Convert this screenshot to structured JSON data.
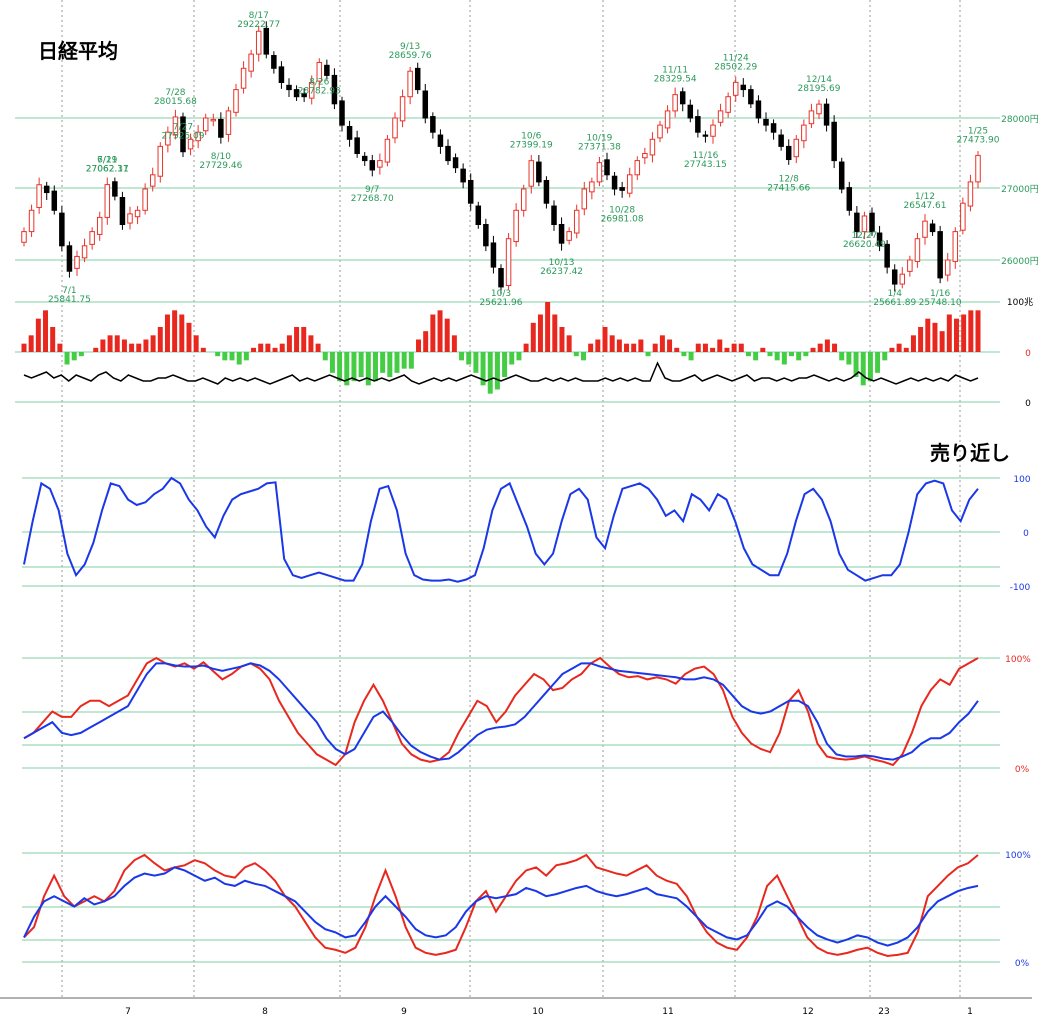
{
  "title": "日経平均",
  "signal_label": "売り近し",
  "colors": {
    "up": "#e8332a",
    "down": "#000000",
    "green": "#2a9a5a",
    "blue": "#1a37e8",
    "red": "#e8281e",
    "hist_pos": "#e8281e",
    "hist_neg": "#44cc44",
    "grid": "#7fcfa5"
  },
  "axes": {
    "price_ticks": [
      "28000円",
      "27000円",
      "26000円"
    ],
    "vol_ticks": [
      "100兆",
      "0",
      "0"
    ],
    "osc_ticks": [
      "100",
      "0",
      "-100"
    ],
    "pct_ticks_1": [
      "100%",
      "0%"
    ],
    "pct_ticks_2": [
      "100%",
      "0%"
    ],
    "month_labels": [
      "7",
      "8",
      "9",
      "10",
      "11",
      "12",
      "23",
      "1"
    ]
  },
  "annotations": [
    {
      "label": "6/29",
      "value": "27062.31"
    },
    {
      "label": "7/11",
      "value": "27062.17"
    },
    {
      "label": "7/1",
      "value": "25841.75"
    },
    {
      "label": "7/28",
      "value": "28015.68"
    },
    {
      "label": "7/27",
      "value": "27525.09"
    },
    {
      "label": "8/10",
      "value": "27729.46"
    },
    {
      "label": "8/17",
      "value": "29222.77"
    },
    {
      "label": "8/26",
      "value": "28782.93"
    },
    {
      "label": "9/7",
      "value": "27268.70"
    },
    {
      "label": "9/13",
      "value": "28659.76"
    },
    {
      "label": "10/3",
      "value": "25621.96"
    },
    {
      "label": "10/6",
      "value": "27399.19"
    },
    {
      "label": "10/13",
      "value": "26237.42"
    },
    {
      "label": "10/19",
      "value": "27371.38"
    },
    {
      "label": "10/28",
      "value": "26981.08"
    },
    {
      "label": "11/11",
      "value": "28329.54"
    },
    {
      "label": "11/16",
      "value": "27743.15"
    },
    {
      "label": "11/24",
      "value": "28502.29"
    },
    {
      "label": "12/8",
      "value": "27415.66"
    },
    {
      "label": "12/14",
      "value": "28195.69"
    },
    {
      "label": "12/27",
      "value": "26620.49"
    },
    {
      "label": "1/4",
      "value": "25661.89"
    },
    {
      "label": "1/12",
      "value": "26547.61"
    },
    {
      "label": "1/16",
      "value": "25748.10"
    },
    {
      "label": "1/25",
      "value": "27473.90"
    }
  ],
  "chart_data": [
    {
      "type": "candlestick",
      "title": "日経平均",
      "ylabel_ticks": [
        "28000円",
        "27000円",
        "26000円"
      ],
      "ylim": [
        25500,
        29400
      ],
      "x_months": [
        "7",
        "8",
        "9",
        "10",
        "11",
        "12",
        "23",
        "1"
      ],
      "closes": [
        26400,
        26700,
        27060,
        26950,
        26700,
        26200,
        25842,
        26050,
        26200,
        26400,
        26600,
        27062,
        26900,
        26500,
        26650,
        26700,
        27000,
        27200,
        27600,
        27800,
        28015,
        27525,
        27700,
        27800,
        28000,
        27980,
        27729,
        28100,
        28400,
        28700,
        28900,
        29222,
        28900,
        28700,
        28500,
        28400,
        28300,
        28300,
        28500,
        28782,
        28600,
        28200,
        27900,
        27700,
        27500,
        27400,
        27268,
        27400,
        27700,
        28000,
        28300,
        28659,
        28400,
        28000,
        27800,
        27600,
        27400,
        27300,
        27100,
        26800,
        26500,
        26200,
        25900,
        25621,
        26300,
        26700,
        27000,
        27399,
        27100,
        26800,
        26500,
        26237,
        26400,
        26700,
        27000,
        27100,
        27371,
        27200,
        27000,
        26981,
        27200,
        27400,
        27500,
        27700,
        27900,
        28100,
        28329,
        28200,
        28000,
        27800,
        27743,
        27900,
        28100,
        28300,
        28502,
        28400,
        28200,
        28000,
        27900,
        27800,
        27600,
        27415,
        27700,
        27900,
        28100,
        28195,
        27900,
        27400,
        27000,
        26700,
        26400,
        26620,
        26400,
        26200,
        25900,
        25661,
        25800,
        26000,
        26300,
        26547,
        26400,
        25748,
        26000,
        26400,
        26800,
        27100,
        27473
      ],
      "events": [
        {
          "label": "6/29",
          "value": 27062.31
        },
        {
          "label": "7/1",
          "value": 25841.75
        },
        {
          "label": "7/11",
          "value": 27062.17
        },
        {
          "label": "7/27",
          "value": 27525.09
        },
        {
          "label": "7/28",
          "value": 28015.68
        },
        {
          "label": "8/10",
          "value": 27729.46
        },
        {
          "label": "8/17",
          "value": 29222.77
        },
        {
          "label": "8/26",
          "value": 28782.93
        },
        {
          "label": "9/7",
          "value": 27268.7
        },
        {
          "label": "9/13",
          "value": 28659.76
        },
        {
          "label": "10/3",
          "value": 25621.96
        },
        {
          "label": "10/6",
          "value": 27399.19
        },
        {
          "label": "10/13",
          "value": 26237.42
        },
        {
          "label": "10/19",
          "value": 27371.38
        },
        {
          "label": "10/28",
          "value": 26981.08
        },
        {
          "label": "11/11",
          "value": 28329.54
        },
        {
          "label": "11/16",
          "value": 27743.15
        },
        {
          "label": "11/24",
          "value": 28502.29
        },
        {
          "label": "12/8",
          "value": 27415.66
        },
        {
          "label": "12/14",
          "value": 28195.69
        },
        {
          "label": "12/27",
          "value": 26620.49
        },
        {
          "label": "1/4",
          "value": 25661.89
        },
        {
          "label": "1/12",
          "value": 26547.61
        },
        {
          "label": "1/16",
          "value": 25748.1
        },
        {
          "label": "1/25",
          "value": 27473.9
        }
      ]
    },
    {
      "type": "bar",
      "ylabel_ticks": [
        "100兆",
        "0",
        "0"
      ],
      "values": [
        2,
        4,
        8,
        10,
        6,
        2,
        -3,
        -2,
        -1,
        0,
        1,
        3,
        4,
        4,
        3,
        2,
        2,
        3,
        4,
        6,
        9,
        10,
        9,
        7,
        4,
        1,
        0,
        -1,
        -2,
        -2,
        -3,
        -2,
        1,
        2,
        2,
        1,
        2,
        4,
        6,
        6,
        4,
        2,
        -2,
        -5,
        -7,
        -8,
        -7,
        -6,
        -8,
        -7,
        -5,
        -6,
        -5,
        -4,
        -4,
        3,
        5,
        9,
        10,
        8,
        4,
        -2,
        -3,
        -5,
        -8,
        -10,
        -9,
        -6,
        -3,
        -2,
        2,
        7,
        9,
        12,
        9,
        6,
        4,
        -1,
        -2,
        2,
        3,
        6,
        4,
        3,
        2,
        2,
        3,
        -1,
        2,
        4,
        3,
        1,
        -1,
        -2,
        2,
        2,
        1,
        3,
        1,
        2,
        2,
        -1,
        -2,
        1,
        -1,
        -2,
        -3,
        -1,
        -2,
        -1,
        1,
        2,
        3,
        2,
        -2,
        -3,
        -6,
        -8,
        -7,
        -5,
        -2,
        1,
        2,
        1,
        4,
        6,
        8,
        7,
        5,
        9,
        8,
        9,
        10,
        10
      ],
      "line": [
        -1,
        -2,
        -1,
        0,
        -2,
        -1,
        -3,
        -1,
        -2,
        -3,
        -1,
        0,
        -2,
        -3,
        -1,
        -2,
        -3,
        -3,
        -2,
        -2,
        -1,
        -2,
        -3,
        -3,
        -2,
        -3,
        -4,
        -2,
        -3,
        -2,
        -3,
        -2,
        -3,
        -4,
        -3,
        -2,
        -1,
        -3,
        -2,
        -3,
        -2,
        -1,
        -2,
        -3,
        -2,
        -3,
        -2,
        -3,
        -2,
        -3,
        -2,
        -1,
        -3,
        -4,
        -3,
        -2,
        -3,
        -2,
        -3,
        -2,
        -1,
        -2,
        -3,
        -2,
        -3,
        -2,
        -1,
        -2,
        -3,
        -3,
        -2,
        -3,
        -2,
        -3,
        -2,
        -3,
        -3,
        -3,
        -2,
        -3,
        -2,
        -3,
        -2,
        -3,
        -3,
        3,
        -2,
        -3,
        -3,
        -2,
        -1,
        -3,
        -2,
        -1,
        -2,
        -3,
        -2,
        -1,
        -3,
        -2,
        -2,
        -3,
        -2,
        -3,
        -2,
        -2,
        -1,
        -2,
        -3,
        -2,
        -3,
        -2,
        0,
        -2,
        -3,
        -2,
        -3,
        -4,
        -3,
        -2,
        -3,
        -2,
        -3,
        -2,
        -3,
        -1,
        -2,
        -3,
        -2
      ],
      "ylim": [
        -12,
        12
      ]
    },
    {
      "type": "line",
      "ylabel_ticks": [
        "100",
        "0",
        "-100"
      ],
      "series": [
        {
          "values": [
            -60,
            20,
            90,
            80,
            40,
            -40,
            -80,
            -60,
            -20,
            40,
            90,
            85,
            60,
            50,
            55,
            70,
            80,
            100,
            90,
            60,
            40,
            10,
            -10,
            30,
            60,
            70,
            75,
            80,
            90,
            92,
            -50,
            -80,
            -85,
            -80,
            -75,
            -80,
            -85,
            -90,
            -90,
            -60,
            20,
            80,
            85,
            40,
            -40,
            -80,
            -88,
            -90,
            -90,
            -88,
            -92,
            -88,
            -80,
            -30,
            40,
            80,
            90,
            50,
            10,
            -40,
            -60,
            -40,
            20,
            70,
            80,
            60,
            -10,
            -30,
            30,
            80,
            85,
            90,
            80,
            60,
            30,
            40,
            20,
            70,
            60,
            40,
            70,
            60,
            20,
            -30,
            -60,
            -70,
            -80,
            -80,
            -40,
            20,
            70,
            80,
            60,
            20,
            -40,
            -70,
            -80,
            -90,
            -85,
            -80,
            -80,
            -60,
            0,
            70,
            90,
            95,
            90,
            40,
            20,
            60,
            80
          ]
        }
      ],
      "ylim": [
        -100,
        100
      ]
    },
    {
      "type": "line",
      "ylabel_ticks": [
        "100%",
        "0%"
      ],
      "series": [
        {
          "values": [
            25,
            30,
            40,
            50,
            45,
            45,
            55,
            60,
            60,
            55,
            60,
            65,
            80,
            95,
            100,
            95,
            92,
            95,
            90,
            96,
            88,
            80,
            85,
            92,
            95,
            90,
            80,
            60,
            45,
            30,
            20,
            10,
            5,
            0,
            10,
            40,
            60,
            75,
            60,
            40,
            20,
            10,
            5,
            3,
            5,
            12,
            30,
            45,
            60,
            55,
            40,
            50,
            65,
            75,
            85,
            80,
            70,
            72,
            80,
            85,
            95,
            100,
            92,
            85,
            82,
            83,
            80,
            82,
            80,
            76,
            85,
            90,
            92,
            85,
            70,
            45,
            30,
            20,
            15,
            12,
            30,
            60,
            70,
            50,
            20,
            8,
            6,
            5,
            6,
            8,
            5,
            3,
            0,
            10,
            30,
            55,
            70,
            80,
            75,
            90,
            95,
            100
          ]
        },
        {
          "values": [
            25,
            30,
            35,
            40,
            30,
            28,
            30,
            35,
            40,
            45,
            50,
            55,
            70,
            85,
            95,
            95,
            93,
            92,
            92,
            93,
            90,
            88,
            90,
            92,
            95,
            93,
            88,
            80,
            70,
            60,
            50,
            40,
            25,
            15,
            10,
            15,
            30,
            45,
            50,
            40,
            28,
            18,
            12,
            8,
            5,
            6,
            12,
            20,
            28,
            33,
            35,
            36,
            38,
            45,
            55,
            65,
            75,
            85,
            90,
            95,
            95,
            92,
            90,
            88,
            87,
            86,
            85,
            84,
            83,
            82,
            80,
            80,
            82,
            80,
            75,
            65,
            55,
            50,
            48,
            50,
            55,
            60,
            60,
            55,
            40,
            20,
            10,
            8,
            8,
            9,
            8,
            6,
            5,
            8,
            12,
            20,
            25,
            25,
            30,
            40,
            48,
            60
          ]
        }
      ],
      "ylim": [
        0,
        100
      ]
    },
    {
      "type": "line",
      "ylabel_ticks": [
        "100%",
        "0%"
      ],
      "series": [
        {
          "values": [
            20,
            30,
            60,
            80,
            60,
            50,
            55,
            60,
            55,
            65,
            85,
            95,
            100,
            92,
            85,
            88,
            90,
            95,
            92,
            85,
            80,
            78,
            88,
            92,
            85,
            75,
            60,
            50,
            35,
            20,
            10,
            8,
            5,
            10,
            30,
            60,
            85,
            60,
            30,
            10,
            5,
            3,
            5,
            8,
            30,
            55,
            65,
            45,
            60,
            75,
            85,
            88,
            80,
            90,
            92,
            95,
            100,
            88,
            85,
            82,
            80,
            85,
            90,
            80,
            75,
            72,
            60,
            40,
            25,
            15,
            10,
            8,
            20,
            40,
            70,
            80,
            60,
            40,
            20,
            10,
            5,
            3,
            5,
            8,
            10,
            5,
            2,
            3,
            5,
            25,
            60,
            70,
            80,
            88,
            92,
            100
          ]
        },
        {
          "values": [
            20,
            40,
            55,
            60,
            55,
            50,
            58,
            52,
            55,
            60,
            70,
            78,
            82,
            80,
            82,
            88,
            85,
            80,
            75,
            78,
            72,
            70,
            75,
            72,
            70,
            65,
            60,
            55,
            45,
            35,
            28,
            25,
            20,
            22,
            35,
            50,
            60,
            50,
            40,
            28,
            22,
            20,
            22,
            30,
            45,
            55,
            60,
            58,
            60,
            62,
            68,
            65,
            60,
            62,
            65,
            68,
            70,
            65,
            62,
            60,
            62,
            65,
            68,
            62,
            60,
            58,
            50,
            40,
            30,
            25,
            20,
            18,
            22,
            35,
            50,
            55,
            50,
            40,
            30,
            22,
            18,
            15,
            18,
            22,
            20,
            15,
            12,
            15,
            20,
            30,
            45,
            55,
            60,
            65,
            68,
            70
          ]
        }
      ],
      "ylim": [
        0,
        100
      ]
    }
  ]
}
